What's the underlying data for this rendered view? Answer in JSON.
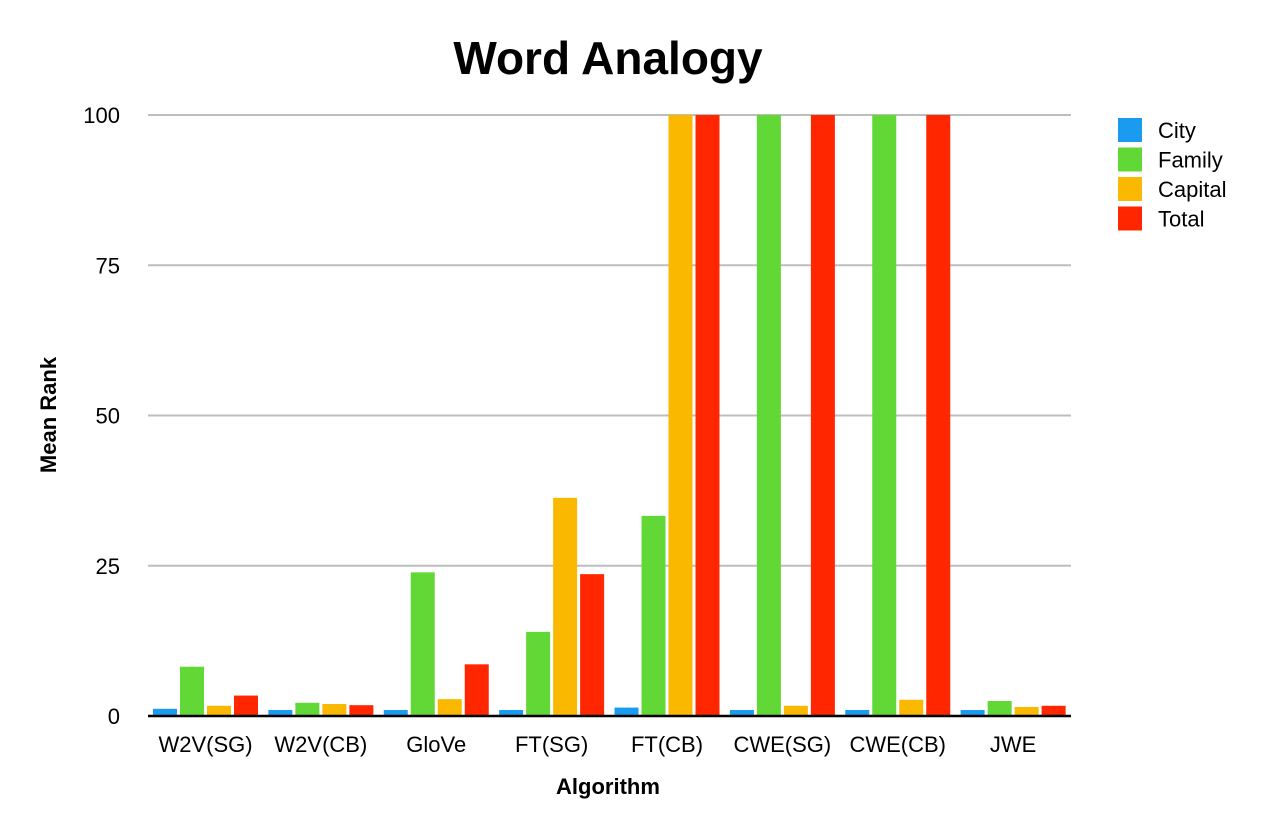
{
  "chart_data": {
    "type": "bar",
    "title": "Word Analogy",
    "xlabel": "Algorithm",
    "ylabel": "Mean Rank",
    "ylim": [
      0,
      100
    ],
    "yticks": [
      0,
      25,
      50,
      75,
      100
    ],
    "categories": [
      "W2V(SG)",
      "W2V(CB)",
      "GloVe",
      "FT(SG)",
      "FT(CB)",
      "CWE(SG)",
      "CWE(CB)",
      "JWE"
    ],
    "series": [
      {
        "name": "City",
        "color": "#1a9bf0",
        "values": [
          1.2,
          1.0,
          1.0,
          1.0,
          1.4,
          1.0,
          1.0,
          1.0
        ]
      },
      {
        "name": "Family",
        "color": "#61d836",
        "values": [
          8.2,
          2.2,
          23.9,
          14.0,
          33.3,
          100,
          100,
          2.5
        ]
      },
      {
        "name": "Capital",
        "color": "#fbb800",
        "values": [
          1.7,
          2.0,
          2.8,
          36.3,
          100,
          1.7,
          2.7,
          1.5
        ]
      },
      {
        "name": "Total",
        "color": "#ff2600",
        "values": [
          3.4,
          1.8,
          8.6,
          23.6,
          100,
          100,
          100,
          1.7
        ]
      }
    ],
    "grid": true,
    "legend_position": "right-top"
  }
}
